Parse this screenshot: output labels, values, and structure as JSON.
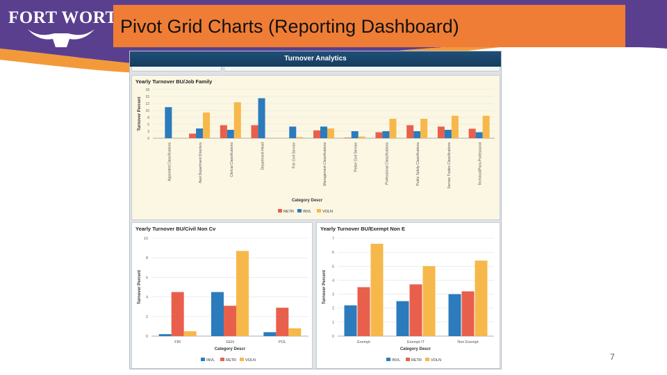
{
  "slide": {
    "title": "Pivot Grid Charts (Reporting Dashboard)",
    "page_number": "7",
    "logo_text": "FORT WORTH",
    "logo_mark": "®",
    "colors": {
      "title_bar": "#ef7d35",
      "banner_purple": "#5b3f8f",
      "banner_orange": "#f29a3a"
    }
  },
  "dashboard": {
    "header_title": "Turnover Analytics"
  },
  "legend_colors": {
    "RETR": "#e8604c",
    "INVL": "#2b7bbd",
    "VOLN": "#f7b84b"
  },
  "chart_data": [
    {
      "type": "bar",
      "title": "Yearly Turnover BU/Job Family",
      "xlabel": "Category Descr",
      "ylabel": "Turnover Percent",
      "ylim": [
        0,
        18
      ],
      "yticks": [
        "0",
        "3",
        "5",
        "8",
        "10",
        "12",
        "15",
        "18"
      ],
      "categories": [
        "Appointed Classifications",
        "Asst Department Directors",
        "Clerical Classifications",
        "Department Head",
        "Fire Civil Service",
        "Management Classifications",
        "Police Civil Service",
        "Professional Classifications",
        "Public Safety Classifications",
        "Service Trades Classifications",
        "Technical/Para-Professional"
      ],
      "series": [
        {
          "name": "RETR",
          "values": [
            0,
            1.7,
            4.8,
            4.8,
            0,
            2.9,
            0.2,
            2.2,
            4.8,
            4.3,
            3.5
          ]
        },
        {
          "name": "INVL",
          "values": [
            11.5,
            3.6,
            3.1,
            14.8,
            4.3,
            4.3,
            2.6,
            2.6,
            2.6,
            3.1,
            2.2
          ]
        },
        {
          "name": "VOLN",
          "values": [
            0,
            9.5,
            13.3,
            0,
            0.4,
            3.6,
            0.6,
            7.2,
            7.2,
            8.3,
            8.3
          ]
        }
      ]
    },
    {
      "type": "bar",
      "title": "Yearly Turnover BU/Civil Non Cv",
      "xlabel": "Category Descr",
      "ylabel": "Turnover Percent",
      "ylim": [
        0,
        10
      ],
      "yticks": [
        "0",
        "2",
        "4",
        "6",
        "8",
        "10"
      ],
      "categories": [
        "FIR",
        "GEN",
        "POL"
      ],
      "series": [
        {
          "name": "INVL",
          "values": [
            0.2,
            4.5,
            0.4
          ]
        },
        {
          "name": "RETR",
          "values": [
            4.5,
            3.1,
            2.9
          ]
        },
        {
          "name": "VOLN",
          "values": [
            0.5,
            8.7,
            0.8
          ]
        }
      ]
    },
    {
      "type": "bar",
      "title": "Yearly Turnover BU/Exempt Non E",
      "xlabel": "Category Descr",
      "ylabel": "Turnover Percent",
      "ylim": [
        0,
        7
      ],
      "yticks": [
        "0",
        "1",
        "2",
        "3",
        "4",
        "5",
        "6",
        "7"
      ],
      "categories": [
        "Exempt",
        "Exempt IT",
        "Non Exempt"
      ],
      "series": [
        {
          "name": "INVL",
          "values": [
            2.2,
            2.5,
            3.0
          ]
        },
        {
          "name": "RETR",
          "values": [
            3.5,
            3.7,
            3.2
          ]
        },
        {
          "name": "VOLN",
          "values": [
            6.6,
            5.0,
            5.4
          ]
        }
      ]
    }
  ]
}
